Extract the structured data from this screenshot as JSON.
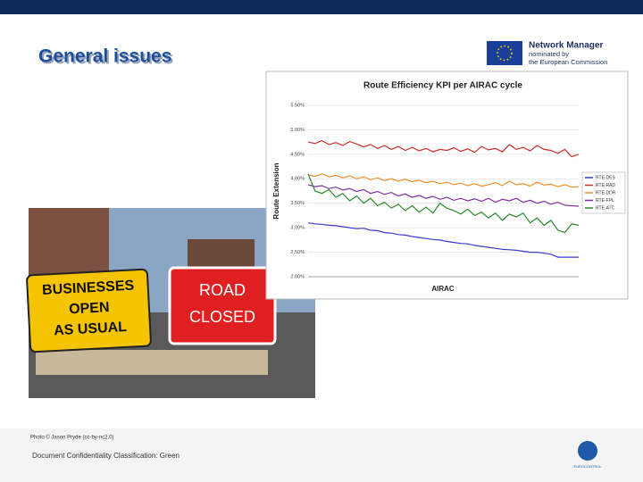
{
  "slide": {
    "title": "General issues",
    "logo": {
      "line1": "Network Manager",
      "line2": "nominated by",
      "line3": "the European Commission"
    },
    "photo": {
      "sign1": [
        "BUSINESSES",
        "OPEN",
        "AS USUAL"
      ],
      "sign2": [
        "ROAD",
        "CLOSED"
      ]
    },
    "credit": "Photo © Jason Pryde (cc-by-nc2.0)",
    "footer": "Document Confidentiality Classification: Green",
    "brand": "EUROCONTROL"
  },
  "chart_data": {
    "type": "line",
    "title": "Route Efficiency KPI per AIRAC cycle",
    "y_label": "Route Extension",
    "x_label": "AIRAC",
    "ylim": [
      2,
      5.5
    ],
    "yticks": [
      {
        "value": 2,
        "label": "2.00%"
      },
      {
        "value": 2.5,
        "label": "2.50%"
      },
      {
        "value": 3,
        "label": "3.00%"
      },
      {
        "value": 3.5,
        "label": "3.50%"
      },
      {
        "value": 4,
        "label": "4.00%"
      },
      {
        "value": 4.5,
        "label": "4.50%"
      },
      {
        "value": 5,
        "label": "5.00%"
      },
      {
        "value": 5.5,
        "label": "5.50%"
      }
    ],
    "grid": true,
    "series": [
      {
        "name": "RTE-DES",
        "color": "#3a3acc",
        "values": [
          3.1,
          3.08,
          3.07,
          3.05,
          3.04,
          3.02,
          3.0,
          2.98,
          2.99,
          2.95,
          2.94,
          2.9,
          2.89,
          2.86,
          2.85,
          2.82,
          2.8,
          2.78,
          2.76,
          2.75,
          2.72,
          2.7,
          2.68,
          2.67,
          2.64,
          2.62,
          2.6,
          2.58,
          2.56,
          2.55,
          2.54,
          2.52,
          2.5,
          2.5,
          2.48,
          2.46,
          2.4,
          2.4,
          2.4,
          2.4
        ]
      },
      {
        "name": "RTE-RAD",
        "color": "#c83030",
        "values": [
          4.75,
          4.72,
          4.78,
          4.7,
          4.74,
          4.68,
          4.76,
          4.71,
          4.65,
          4.7,
          4.62,
          4.68,
          4.6,
          4.66,
          4.58,
          4.64,
          4.57,
          4.62,
          4.55,
          4.6,
          4.58,
          4.63,
          4.56,
          4.61,
          4.54,
          4.66,
          4.59,
          4.62,
          4.55,
          4.7,
          4.6,
          4.64,
          4.57,
          4.68,
          4.6,
          4.58,
          4.52,
          4.6,
          4.45,
          4.5
        ]
      },
      {
        "name": "RTE-DDR",
        "color": "#f09030",
        "values": [
          4.08,
          4.05,
          4.1,
          4.04,
          4.07,
          4.02,
          4.06,
          4.0,
          4.04,
          3.98,
          4.02,
          3.96,
          4.0,
          3.95,
          3.99,
          3.94,
          3.97,
          3.92,
          3.95,
          3.9,
          3.93,
          3.88,
          3.91,
          3.86,
          3.9,
          3.85,
          3.88,
          3.92,
          3.86,
          3.95,
          3.88,
          3.9,
          3.85,
          3.93,
          3.87,
          3.89,
          3.84,
          3.88,
          3.83,
          3.84
        ]
      },
      {
        "name": "RTE-FPL",
        "color": "#8030a0",
        "values": [
          3.88,
          3.84,
          3.86,
          3.8,
          3.83,
          3.77,
          3.8,
          3.74,
          3.78,
          3.7,
          3.74,
          3.68,
          3.72,
          3.65,
          3.69,
          3.62,
          3.66,
          3.6,
          3.64,
          3.58,
          3.62,
          3.56,
          3.6,
          3.55,
          3.59,
          3.54,
          3.6,
          3.52,
          3.58,
          3.55,
          3.6,
          3.52,
          3.56,
          3.5,
          3.54,
          3.48,
          3.52,
          3.46,
          3.45,
          3.44
        ]
      },
      {
        "name": "RTE-ATC",
        "color": "#2a8a2a",
        "values": [
          4.1,
          3.75,
          3.7,
          3.78,
          3.62,
          3.7,
          3.55,
          3.65,
          3.5,
          3.6,
          3.45,
          3.52,
          3.4,
          3.48,
          3.35,
          3.45,
          3.32,
          3.42,
          3.3,
          3.5,
          3.4,
          3.35,
          3.28,
          3.38,
          3.25,
          3.32,
          3.2,
          3.3,
          3.15,
          3.28,
          3.22,
          3.3,
          3.1,
          3.2,
          3.05,
          3.15,
          2.95,
          2.9,
          3.08,
          3.05
        ]
      }
    ]
  }
}
